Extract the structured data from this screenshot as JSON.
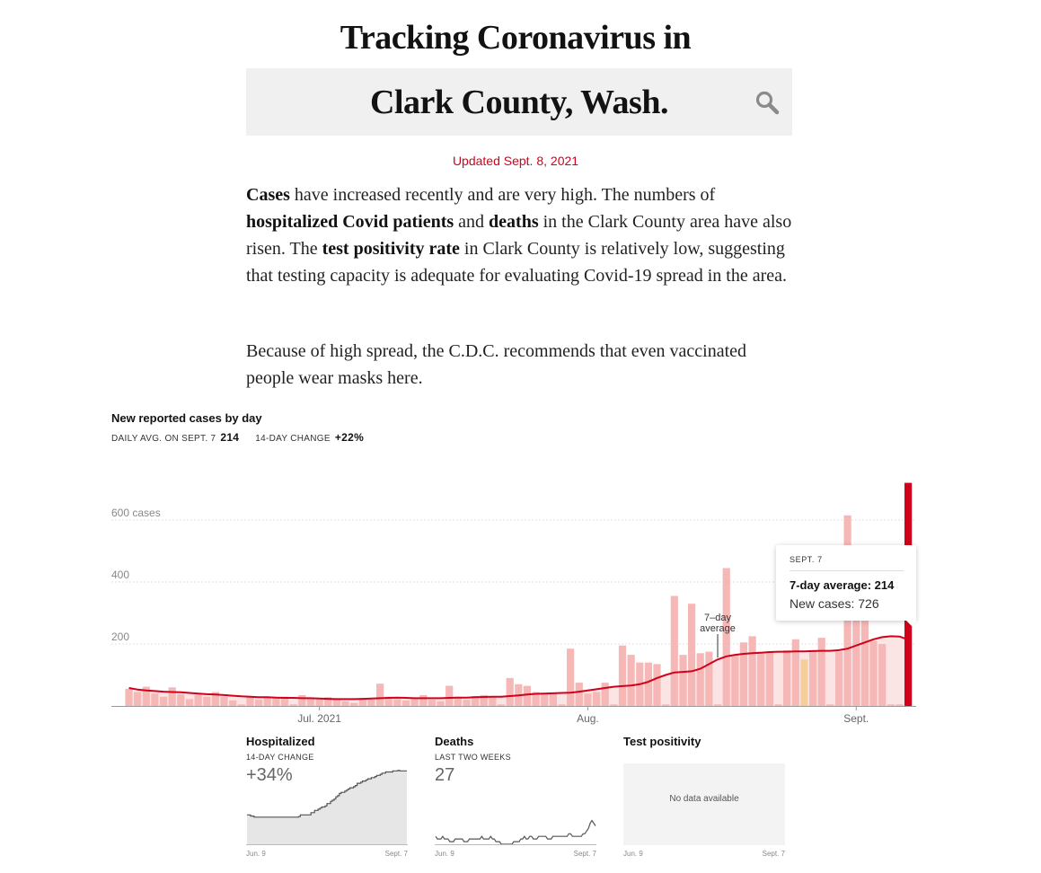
{
  "header": {
    "title": "Tracking Coronavirus in",
    "place": "Clark County, Wash.",
    "updated": "Updated Sept. 8, 2021"
  },
  "summary": {
    "cases": "Cases",
    "t1": " have increased recently and are very high. The numbers of ",
    "hosp": "hospitalized Covid patients",
    "t2": " and ",
    "deaths": "deaths",
    "t3": " in the Clark County area have also risen. The ",
    "positivity": "test positivity rate",
    "t4": " in Clark County is relatively low, suggesting that testing capacity is adequate for evaluating Covid-19 spread in the area."
  },
  "cdc_note": "Because of high spread, the C.D.C. recommends that even vaccinated people wear masks here.",
  "main_chart": {
    "title": "New reported cases by day",
    "avg_label": "DAILY AVG. ON SEPT. 7",
    "avg_value": "214",
    "change_label": "14-DAY CHANGE",
    "change_value": "+22%"
  },
  "tooltip": {
    "date": "SEPT. 7",
    "avg": "7-day average: 214",
    "new_cases": "New cases: 726"
  },
  "small_charts": {
    "hospitalized": {
      "title": "Hospitalized",
      "sub": "14-DAY CHANGE",
      "value": "+34%",
      "start": "Jun. 9",
      "end": "Sept. 7"
    },
    "deaths": {
      "title": "Deaths",
      "sub": "LAST TWO WEEKS",
      "value": "27",
      "start": "Jun. 9",
      "end": "Sept. 7"
    },
    "positivity": {
      "title": "Test positivity",
      "nodata": "No data available",
      "start": "Jun. 9",
      "end": "Sept. 7"
    }
  },
  "colors": {
    "bar": "#f6b7b7",
    "bar_highlight": "#f4cf9a",
    "bar_selected": "#d0021b",
    "avg_line": "#d0021b",
    "avg_fill": "#fbe4e4",
    "small_fill": "#e6e6e6",
    "small_line": "#555555"
  },
  "chart_data": [
    {
      "type": "bar",
      "title": "New reported cases by day",
      "ylabel": "cases",
      "ylim": [
        0,
        720
      ],
      "yticks": [
        {
          "value": 200,
          "label": "200"
        },
        {
          "value": 400,
          "label": "400"
        },
        {
          "value": 600,
          "label": "600 cases"
        }
      ],
      "xticks": [
        {
          "day": 22,
          "label": "Jul. 2021"
        },
        {
          "day": 53,
          "label": "Aug."
        },
        {
          "day": 84,
          "label": "Sept."
        }
      ],
      "annotation": {
        "day": 68,
        "label1": "7–day",
        "label2": "average"
      },
      "highlight_day": 78,
      "selected_day": 90,
      "start_date": "Jun. 9",
      "end_date": "Sept. 7",
      "series": [
        {
          "name": "New cases",
          "values": [
            55,
            45,
            62,
            40,
            30,
            60,
            38,
            22,
            35,
            30,
            45,
            30,
            18,
            5,
            30,
            20,
            28,
            25,
            30,
            5,
            35,
            25,
            20,
            28,
            25,
            15,
            10,
            25,
            20,
            72,
            30,
            22,
            18,
            25,
            35,
            20,
            15,
            65,
            30,
            20,
            32,
            35,
            30,
            5,
            90,
            70,
            65,
            45,
            40,
            40,
            5,
            185,
            75,
            40,
            45,
            75,
            5,
            195,
            165,
            140,
            140,
            135,
            5,
            355,
            165,
            330,
            170,
            175,
            5,
            445,
            165,
            205,
            225,
            175,
            175,
            5,
            180,
            215,
            150,
            180,
            220,
            5,
            175,
            615,
            290,
            275,
            210,
            200,
            5,
            5,
            726
          ],
          "avg": [
            58,
            53,
            50,
            48,
            46,
            45,
            44,
            42,
            40,
            38,
            37,
            35,
            33,
            31,
            30,
            28,
            28,
            27,
            26,
            26,
            25,
            25,
            24,
            23,
            22,
            22,
            22,
            23,
            24,
            25,
            26,
            27,
            26,
            25,
            25,
            25,
            25,
            26,
            27,
            27,
            28,
            29,
            30,
            30,
            32,
            34,
            37,
            39,
            40,
            41,
            42,
            43,
            46,
            50,
            54,
            58,
            62,
            64,
            66,
            70,
            78,
            90,
            100,
            108,
            110,
            112,
            120,
            135,
            150,
            160,
            165,
            168,
            170,
            172,
            174,
            175,
            175,
            176,
            176,
            177,
            178,
            178,
            180,
            185,
            195,
            205,
            215,
            222,
            225,
            224,
            214
          ]
        }
      ]
    },
    {
      "type": "line",
      "title": "Hospitalized",
      "series": [
        {
          "name": "Hospitalized",
          "values": [
            52,
            52,
            50,
            50,
            48,
            48,
            48,
            48,
            48,
            48,
            48,
            48,
            48,
            48,
            48,
            48,
            48,
            48,
            48,
            48,
            48,
            48,
            48,
            48,
            48,
            48,
            48,
            48,
            48,
            49,
            52,
            52,
            52,
            52,
            52,
            52,
            56,
            56,
            60,
            60,
            62,
            64,
            66,
            66,
            68,
            72,
            72,
            76,
            78,
            80,
            84,
            86,
            90,
            92,
            92,
            94,
            96,
            98,
            100,
            100,
            102,
            104,
            108,
            108,
            110,
            112,
            112,
            114,
            116,
            116,
            118,
            118,
            120,
            122,
            122,
            124,
            126,
            126,
            128,
            128,
            128,
            128,
            130,
            130,
            130,
            131,
            130,
            130,
            130,
            130,
            130
          ]
        }
      ]
    },
    {
      "type": "line",
      "title": "Deaths",
      "series": [
        {
          "name": "Deaths",
          "values": [
            3,
            2,
            2,
            2,
            3,
            2,
            2,
            2,
            1,
            1,
            1,
            2,
            2,
            2,
            2,
            2,
            1,
            1,
            1,
            2,
            2,
            2,
            2,
            2,
            2,
            2,
            3,
            2,
            2,
            2,
            2,
            3,
            2,
            2,
            1,
            1,
            1,
            0,
            0,
            0,
            0,
            0,
            0,
            0,
            1,
            1,
            1,
            1,
            2,
            2,
            3,
            2,
            2,
            3,
            3,
            2,
            2,
            2,
            3,
            3,
            3,
            3,
            3,
            2,
            2,
            2,
            3,
            3,
            3,
            3,
            3,
            3,
            3,
            3,
            3,
            4,
            4,
            3,
            3,
            3,
            3,
            3,
            3,
            4,
            4,
            5,
            6,
            8,
            9,
            8,
            7
          ]
        }
      ]
    }
  ]
}
